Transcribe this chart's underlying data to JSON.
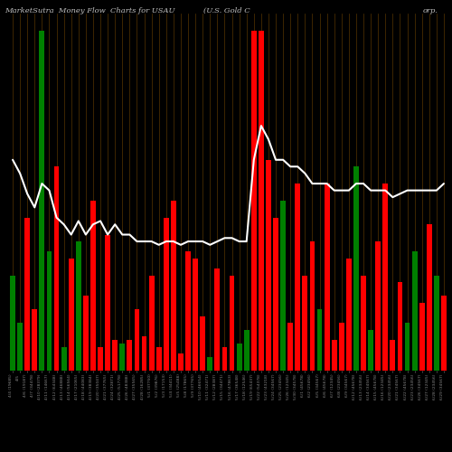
{
  "title_left": "MarketSutra  Money Flow  Charts for USAU",
  "title_mid": "(U.S. Gold C",
  "title_right": "orp.",
  "background_color": "#000000",
  "bar_colors": [
    "green",
    "green",
    "red",
    "red",
    "green",
    "green",
    "red",
    "green",
    "red",
    "green",
    "red",
    "red",
    "red",
    "red",
    "red",
    "green",
    "red",
    "red",
    "red",
    "red",
    "red",
    "red",
    "red",
    "red",
    "red",
    "red",
    "red",
    "green",
    "red",
    "red",
    "red",
    "green",
    "green",
    "red",
    "red",
    "red",
    "red",
    "green",
    "red",
    "red",
    "red",
    "red",
    "green",
    "red",
    "red",
    "red",
    "red",
    "green",
    "red",
    "green",
    "red",
    "red",
    "red",
    "red",
    "green",
    "green",
    "red",
    "red",
    "green",
    "red"
  ],
  "bar_heights": [
    0.28,
    0.14,
    0.45,
    0.18,
    1.0,
    0.35,
    0.6,
    0.07,
    0.33,
    0.38,
    0.22,
    0.5,
    0.07,
    0.4,
    0.09,
    0.08,
    0.09,
    0.18,
    0.1,
    0.28,
    0.07,
    0.45,
    0.5,
    0.05,
    0.35,
    0.33,
    0.16,
    0.04,
    0.3,
    0.07,
    0.28,
    0.08,
    0.12,
    1.0,
    1.0,
    0.62,
    0.45,
    0.5,
    0.14,
    0.55,
    0.28,
    0.38,
    0.18,
    0.55,
    0.09,
    0.14,
    0.33,
    0.6,
    0.28,
    0.12,
    0.38,
    0.55,
    0.09,
    0.26,
    0.14,
    0.35,
    0.2,
    0.43,
    0.28,
    0.22
  ],
  "line_values": [
    0.62,
    0.58,
    0.52,
    0.48,
    0.55,
    0.53,
    0.45,
    0.43,
    0.4,
    0.44,
    0.4,
    0.43,
    0.44,
    0.4,
    0.43,
    0.4,
    0.4,
    0.38,
    0.38,
    0.38,
    0.37,
    0.38,
    0.38,
    0.37,
    0.38,
    0.38,
    0.38,
    0.37,
    0.38,
    0.39,
    0.39,
    0.38,
    0.38,
    0.62,
    0.72,
    0.68,
    0.62,
    0.62,
    0.6,
    0.6,
    0.58,
    0.55,
    0.55,
    0.55,
    0.53,
    0.53,
    0.53,
    0.55,
    0.55,
    0.53,
    0.53,
    0.53,
    0.51,
    0.52,
    0.53,
    0.53,
    0.53,
    0.53,
    0.53,
    0.55
  ],
  "xtick_labels": [
    "4/4 (19685)",
    "4/5",
    "4/6 (19187)",
    "4/7 (34478)",
    "4/10 (28379)",
    "4/11 (14667)",
    "4/12 (64348)",
    "4/13 (46888)",
    "4/14 (56564)",
    "4/17 (21065)",
    "4/18 (44083)",
    "4/19 (38384)",
    "4/20 (35047)",
    "4/21 (37765)",
    "4/24 (32871)",
    "4/25 (51778)",
    "4/26 (48388)",
    "4/27 (35565)",
    "4/28 (16285)",
    "5/1 (37750)",
    "5/2 (39876)",
    "5/3 (17153)",
    "5/4 (34411)",
    "5/5 (25488)",
    "5/8 (17865)",
    "5/9 (37765)",
    "5/10 (46654)",
    "5/11 (32471)",
    "5/12 (28387)",
    "5/15 (34471)",
    "5/16 (47863)",
    "5/17 (36548)",
    "5/18 (12546)",
    "5/19 (65437)",
    "5/22 (54378)",
    "5/23 (43218)",
    "5/24 (34567)",
    "5/25 (23456)",
    "5/26 (12345)",
    "5/30 (34578)",
    "6/1 (45678)",
    "6/2 (23456)",
    "6/5 (34567)",
    "6/6 (45678)",
    "6/7 (12345)",
    "6/8 (23456)",
    "6/9 (34567)",
    "6/12 (45678)",
    "6/13 (23456)",
    "6/14 (34567)",
    "6/15 (45678)",
    "6/16 (12345)",
    "6/20 (23456)",
    "6/21 (34567)",
    "6/22 (45678)",
    "6/23 (23456)",
    "6/26 (34567)",
    "6/27 (12345)",
    "6/28 (23456)",
    "6/29 (34567)"
  ],
  "grid_color": "#6b4200",
  "title_color": "#c0c0c0",
  "title_fontsize": 6.0,
  "bar_width": 0.72,
  "ymin": 0.0,
  "ymax": 1.05,
  "line_scale": 1.0
}
